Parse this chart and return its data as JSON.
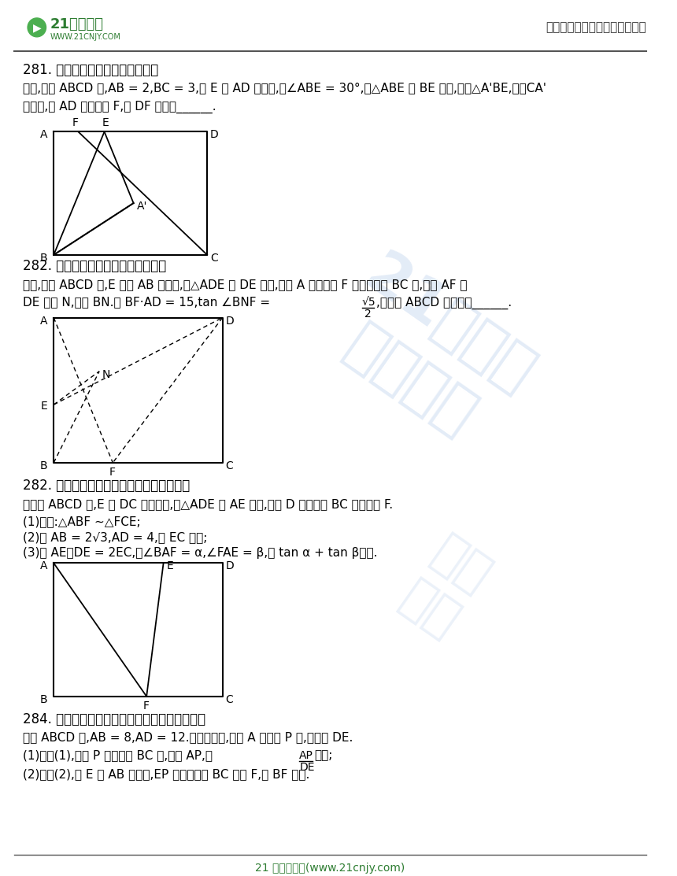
{
  "page_width": 8.6,
  "page_height": 11.13,
  "bg_color": "#ffffff",
  "header_logo_text": "21世纪教育",
  "header_logo_url": "WWW.21CNJY.COM",
  "header_right_text": "中小学教育资源及组卷应用平台",
  "footer_text": "21 世纪教育网(www.21cnjy.com)",
  "watermark_text": "21教育网精选资料",
  "section281_title": "281. 矩形折叠求线段的长（初二）",
  "section281_body1": "如图,矩形 ABCD 中,AB = 2,BC = 3,点 E 为 AD 上一点,且∠ABE = 30°,将△ABE 沿 BE 翻折,得到△A'BE,连接CA'",
  "section281_body2": "并延长,与 AD 相交于点 F,则 DF 的长为______.",
  "section282a_title": "282. 矩形折叠求矩形的面积（初二）",
  "section282a_body1": "如图,矩形 ABCD 中,E 为边 AB 上一点,将△ADE 沿 DE 折叠,使点 A 的对应点 F 恰好落在边 BC 上,连接 AF 交",
  "section282a_body2": "DE 于点 N,连接 BN.若 BF·AD = 15,tan ∠BNF = √5/2,则矩形 ABCD 的面积为______.",
  "section282b_title": "282. 矩形折叠三角形相似求正切值（初三）",
  "section282b_body1": "在矩形 ABCD 中,E 为 DC 边上一点,把△ADE 沿 AE 翻折,使点 D 恰好落在 BC 边上的点 F.",
  "section282b_body2": "(1)求证:△ABF ~△FCE;",
  "section282b_body3": "(2)若 AB = 2√3,AD = 4,求 EC 的长;",
  "section282b_body4": "(3)若 AE－DE = 2EC,记∠BAF = α,∠FAE = β,求 tan α + tan β的值.",
  "section284_title": "284. 矩形折叠三角形相似求线段的比值（初三）",
  "section284_body1": "矩形 ABCD 中,AB = 8,AD = 12.将矩形折叠,使点 A 落在点 P 处,折痕为 DE.",
  "section284_body2": "(1)如图(1),若点 P 恰好在边 BC 上,连接 AP,求AP/DE的值;",
  "section284_body3": "(2)如图(2),若 E 是 AB 的中点,EP 的延长线交 BC 于点 F,求 BF 的长."
}
